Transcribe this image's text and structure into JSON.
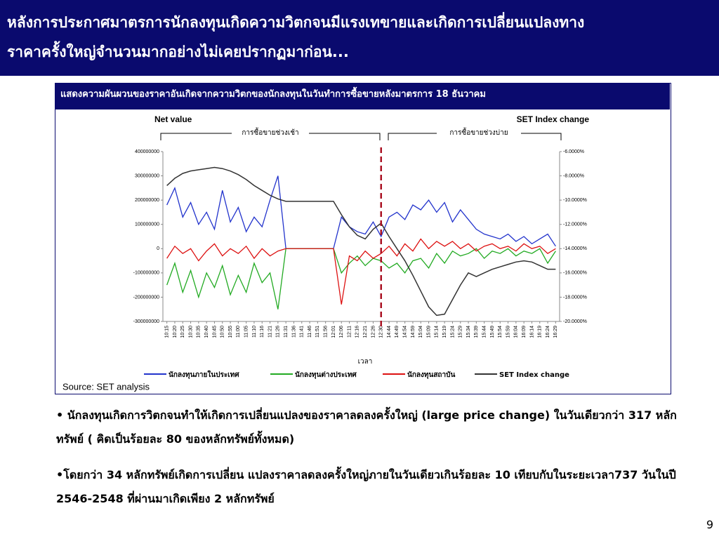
{
  "header": {
    "title_lines": [
      "หลังการประกาศมาตรการนักลงทุนเกิดความวิตกจนมีแรงเทขายและเกิดการเปลี่ยนแปลงทาง",
      "ราคาครั้งใหญ่จำนวนมากอย่างไม่เคยปรากฏมาก่อน..."
    ]
  },
  "box_title": "แสดงความผันผวนของราคาอันเกิดจากความวิตกของนักลงทุนในวันทำการซื้อขายหลังมาตรการ 18 ธันวาคม",
  "chart_data": {
    "type": "line",
    "y_label": "Net value",
    "y2_label": "SET Index change",
    "x_label": "เวลา",
    "annotations": [
      "การซื้อขายช่วงเช้า",
      "การซื้อขายช่วงบ่าย"
    ],
    "source": "Source: SET analysis",
    "categories": [
      "10:15",
      "10:20",
      "10:25",
      "10:30",
      "10:35",
      "10:40",
      "10:45",
      "10:50",
      "10:55",
      "11:00",
      "11:05",
      "11:10",
      "11:16",
      "11:21",
      "11:26",
      "11:31",
      "11:36",
      "11:41",
      "11:46",
      "11:51",
      "11:56",
      "12:01",
      "12:06",
      "12:11",
      "12:16",
      "12:21",
      "12:26",
      "12:30",
      "14:44",
      "14:49",
      "14:54",
      "14:59",
      "15:04",
      "15:09",
      "15:14",
      "15:19",
      "15:24",
      "15:29",
      "15:34",
      "15:39",
      "15:44",
      "15:49",
      "15:54",
      "15:59",
      "16:04",
      "16:09",
      "16:14",
      "16:19",
      "16:24",
      "16:29"
    ],
    "ylim": [
      -300000000,
      400000000
    ],
    "yticks": [
      -300000000,
      -200000000,
      -100000000,
      0,
      100000000,
      200000000,
      300000000,
      400000000
    ],
    "y2lim": [
      -20,
      -6
    ],
    "y2ticks": [
      {
        "value": -20,
        "label": "-20.0000%"
      },
      {
        "value": -18,
        "label": "-18.0000%"
      },
      {
        "value": -16,
        "label": "-16.0000%"
      },
      {
        "value": -14,
        "label": "-14.0000%"
      },
      {
        "value": -12,
        "label": "-12.0000%"
      },
      {
        "value": -10,
        "label": "-10.0000%"
      },
      {
        "value": -8,
        "label": "-8.0000%"
      },
      {
        "value": -6,
        "label": "-6.0000%"
      }
    ],
    "series": [
      {
        "name": "นักลงทุนภายในประเทศ",
        "color": "#2233cc",
        "values": [
          180000000,
          250000000,
          130000000,
          190000000,
          100000000,
          150000000,
          80000000,
          240000000,
          110000000,
          170000000,
          70000000,
          130000000,
          90000000,
          200000000,
          300000000,
          0,
          0,
          0,
          0,
          0,
          0,
          0,
          130000000,
          90000000,
          70000000,
          60000000,
          110000000,
          50000000,
          130000000,
          150000000,
          120000000,
          180000000,
          160000000,
          200000000,
          150000000,
          190000000,
          110000000,
          160000000,
          120000000,
          80000000,
          60000000,
          50000000,
          40000000,
          60000000,
          30000000,
          50000000,
          20000000,
          40000000,
          60000000,
          10000000
        ]
      },
      {
        "name": "นักลงทุนต่างประเทศ",
        "color": "#22aa22",
        "values": [
          -150000000,
          -60000000,
          -180000000,
          -90000000,
          -200000000,
          -100000000,
          -160000000,
          -70000000,
          -190000000,
          -110000000,
          -180000000,
          -60000000,
          -140000000,
          -100000000,
          -250000000,
          0,
          0,
          0,
          0,
          0,
          0,
          0,
          -100000000,
          -60000000,
          -30000000,
          -70000000,
          -40000000,
          -50000000,
          -80000000,
          -60000000,
          -100000000,
          -50000000,
          -40000000,
          -80000000,
          -20000000,
          -60000000,
          -10000000,
          -30000000,
          -20000000,
          0,
          -40000000,
          -10000000,
          -20000000,
          0,
          -30000000,
          -10000000,
          -20000000,
          0,
          -60000000,
          -10000000
        ]
      },
      {
        "name": "นักลงทุนสถาบัน",
        "color": "#dd1111",
        "values": [
          -40000000,
          10000000,
          -20000000,
          0,
          -50000000,
          -10000000,
          20000000,
          -30000000,
          0,
          -20000000,
          10000000,
          -40000000,
          0,
          -30000000,
          -10000000,
          0,
          0,
          0,
          0,
          0,
          0,
          0,
          -230000000,
          -30000000,
          -50000000,
          -10000000,
          -40000000,
          -20000000,
          10000000,
          -30000000,
          20000000,
          -10000000,
          40000000,
          0,
          30000000,
          10000000,
          30000000,
          0,
          20000000,
          -10000000,
          10000000,
          20000000,
          0,
          10000000,
          -10000000,
          20000000,
          0,
          10000000,
          -20000000,
          0
        ]
      },
      {
        "name": "SET Index change",
        "color": "#333333",
        "axis": "y2",
        "values": [
          -8.8,
          -8.2,
          -7.8,
          -7.6,
          -7.5,
          -7.4,
          -7.3,
          -7.4,
          -7.6,
          -7.9,
          -8.3,
          -8.8,
          -9.2,
          -9.6,
          -9.9,
          -10.1,
          -10.1,
          -10.1,
          -10.1,
          -10.1,
          -10.1,
          -10.1,
          -11.2,
          -12.2,
          -12.9,
          -13.2,
          -12.4,
          -11.9,
          -13.0,
          -14.0,
          -15.0,
          -16.2,
          -17.5,
          -18.8,
          -19.5,
          -19.4,
          -18.2,
          -17.0,
          -16.0,
          -16.3,
          -16.0,
          -15.7,
          -15.5,
          -15.3,
          -15.1,
          -15.0,
          -15.1,
          -15.4,
          -15.7,
          -15.7
        ]
      }
    ]
  },
  "bullets": [
    "• นักลงทุนเกิดการวิตกจนทำให้เกิดการเปลี่ยนแปลงของราคาลดลงครั้งใหญ่ (large price change) ในวันเดียวกว่า 317 หลักทรัพย์ ( คิดเป็นร้อยละ 80 ของหลักทรัพย์ทั้งหมด)",
    "•โดยกว่า 34 หลักทรัพย์เกิดการเปลี่ยน แปลงราคาลดลงครั้งใหญ่ภายในวันเดียวเกินร้อยละ 10 เทียบกับในระยะเวลา737 วันในปี 2546-2548 ที่ผ่านมาเกิดเพียง 2 หลักทรัพย์"
  ],
  "page_number": "9"
}
